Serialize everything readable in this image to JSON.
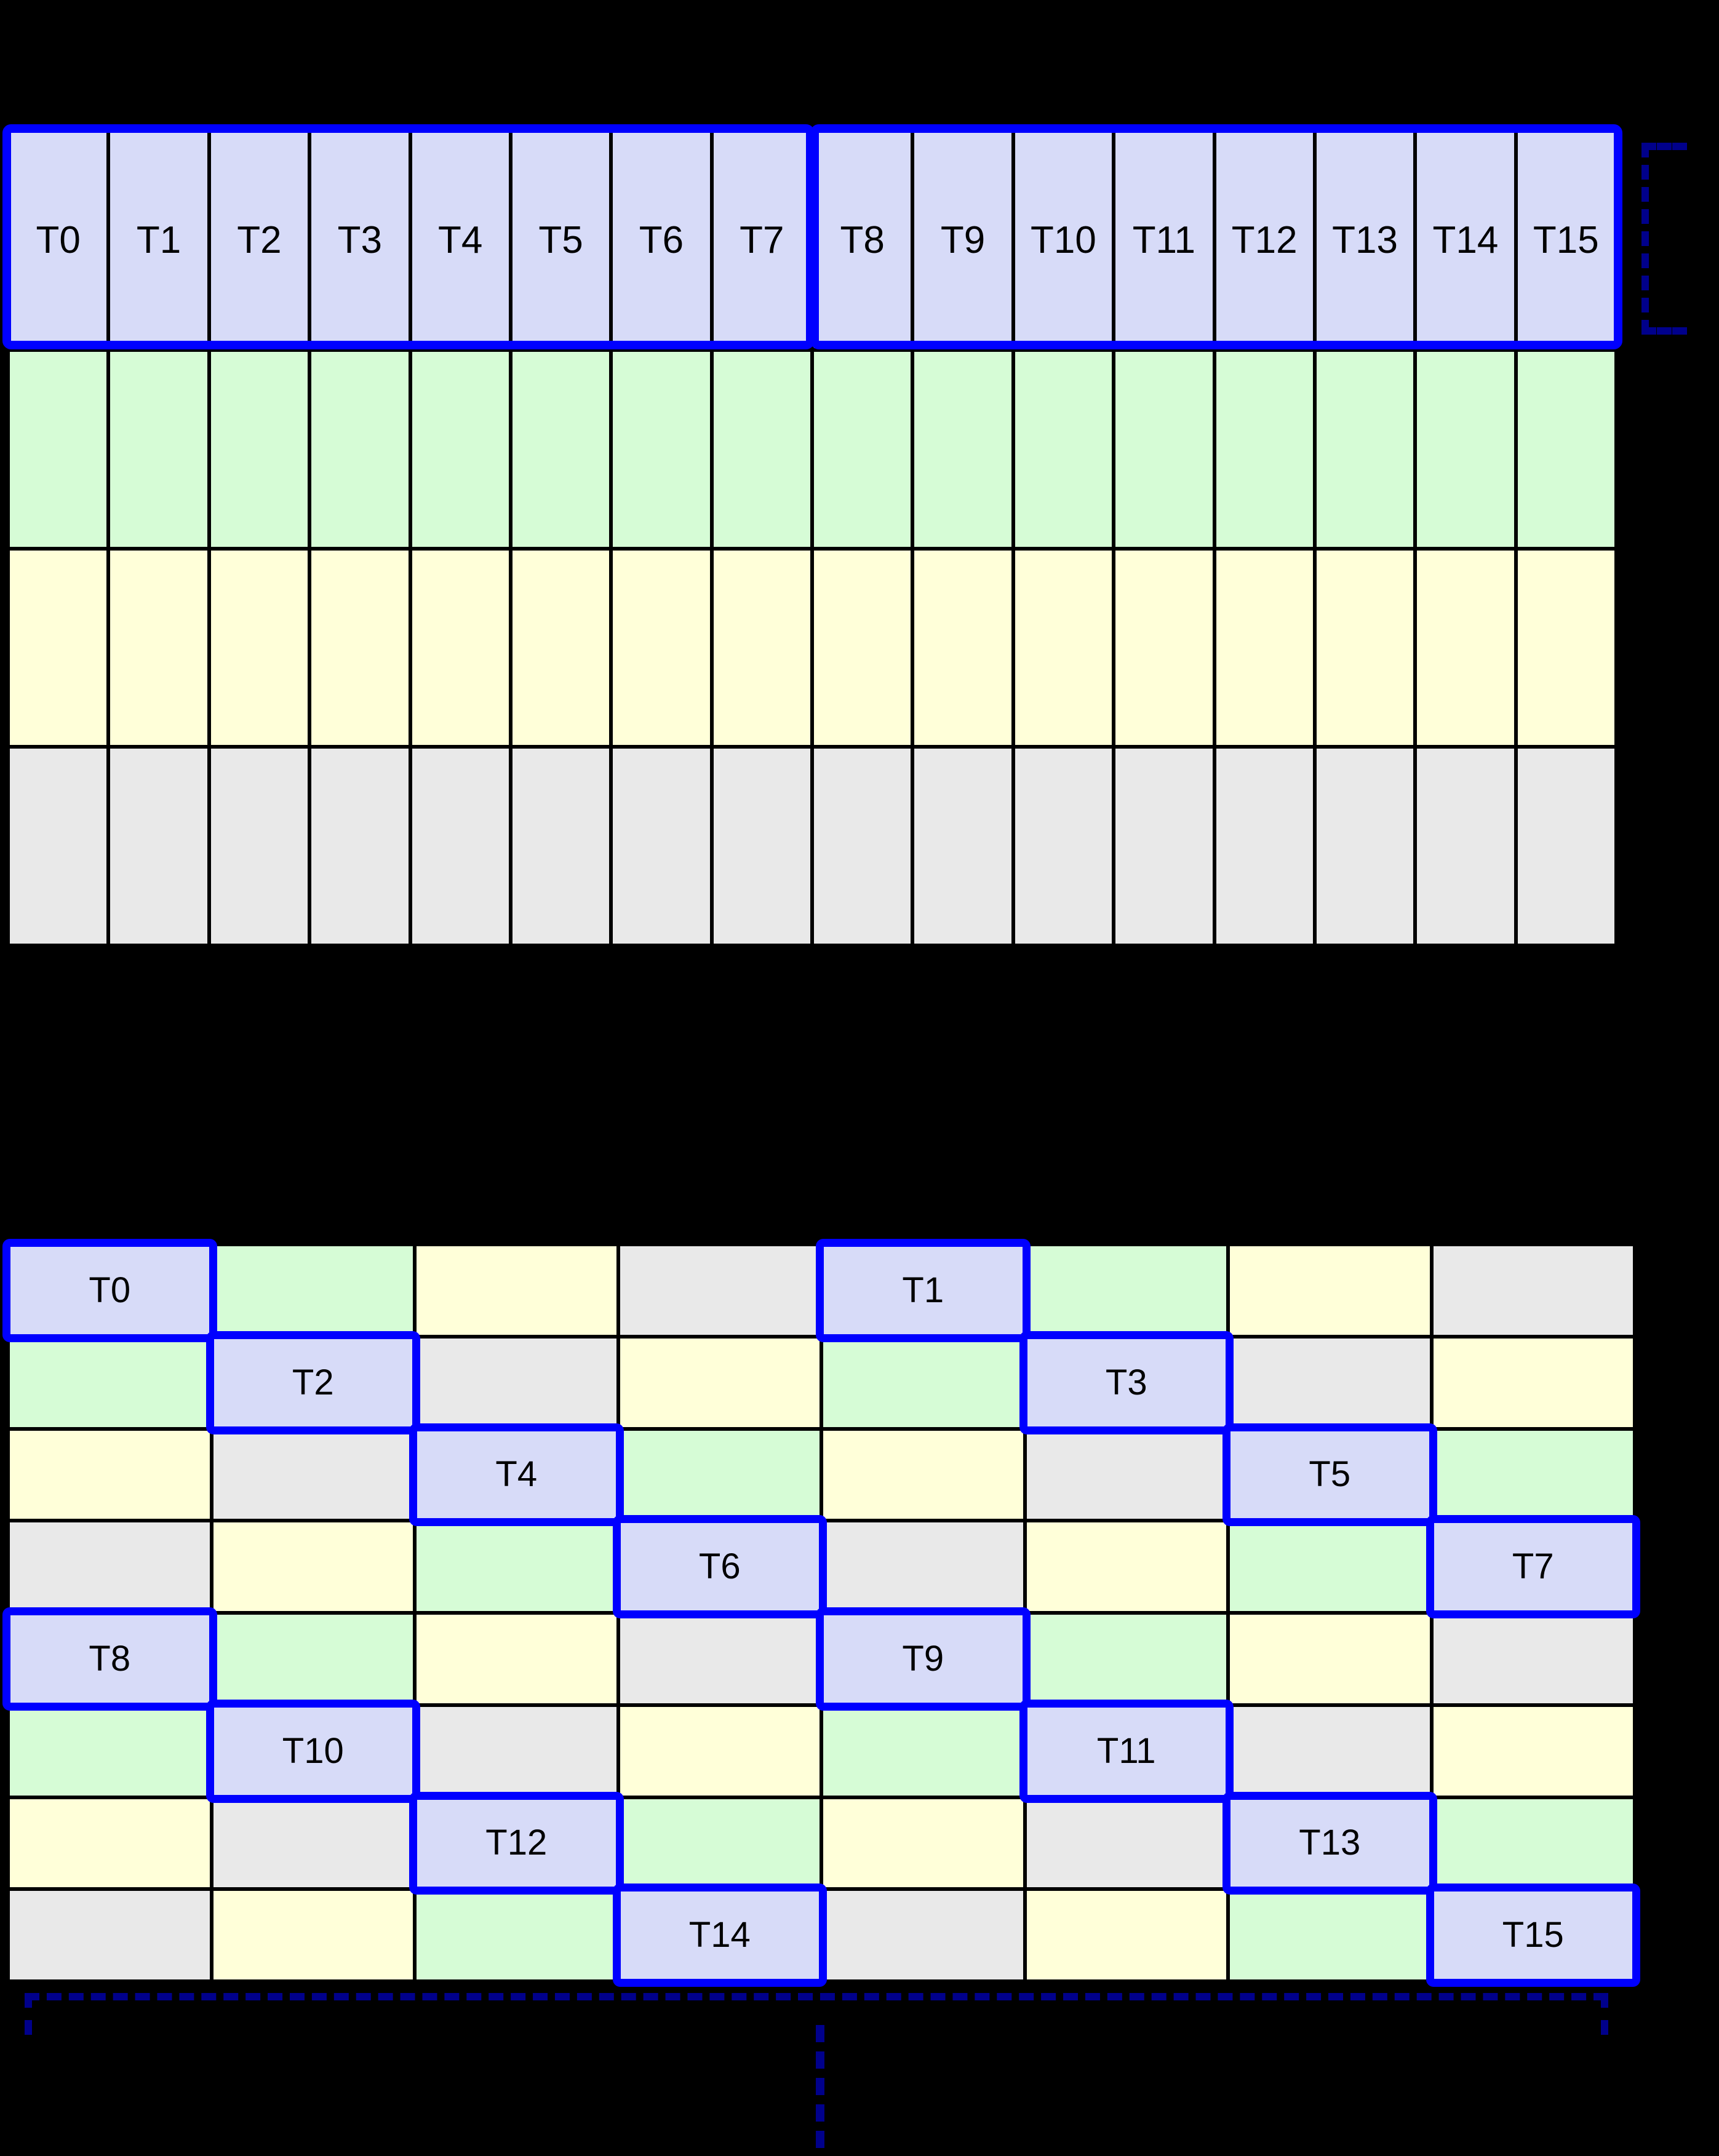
{
  "palette": {
    "lavender": "#D7DBF8",
    "green": "#D6FCD6",
    "yellow": "#FFFFD9",
    "gray": "#E9E9E9",
    "highlight_blue": "#0000FF",
    "bracket_navy": "#00008B",
    "grid_line": "#000000",
    "background": "#000000",
    "label_text": "#000000"
  },
  "top_grid": {
    "columns": 16,
    "header_row_color": "lavender",
    "thread_labels": [
      "T0",
      "T1",
      "T2",
      "T3",
      "T4",
      "T5",
      "T6",
      "T7",
      "T8",
      "T9",
      "T10",
      "T11",
      "T12",
      "T13",
      "T14",
      "T15"
    ],
    "group_size": 8,
    "data_row_colors": [
      "green",
      "yellow",
      "gray"
    ]
  },
  "bottom_grid": {
    "rows": 8,
    "columns": 8,
    "cell_colors": [
      [
        "lavender",
        "green",
        "yellow",
        "gray",
        "lavender",
        "green",
        "yellow",
        "gray"
      ],
      [
        "green",
        "lavender",
        "gray",
        "yellow",
        "green",
        "lavender",
        "gray",
        "yellow"
      ],
      [
        "yellow",
        "gray",
        "lavender",
        "green",
        "yellow",
        "gray",
        "lavender",
        "green"
      ],
      [
        "gray",
        "yellow",
        "green",
        "lavender",
        "gray",
        "yellow",
        "green",
        "lavender"
      ],
      [
        "lavender",
        "green",
        "yellow",
        "gray",
        "lavender",
        "green",
        "yellow",
        "gray"
      ],
      [
        "green",
        "lavender",
        "gray",
        "yellow",
        "green",
        "lavender",
        "gray",
        "yellow"
      ],
      [
        "yellow",
        "gray",
        "lavender",
        "green",
        "yellow",
        "gray",
        "lavender",
        "green"
      ],
      [
        "gray",
        "yellow",
        "green",
        "lavender",
        "gray",
        "yellow",
        "green",
        "lavender"
      ]
    ],
    "highlights": [
      {
        "row": 0,
        "col": 0,
        "label": "T0"
      },
      {
        "row": 0,
        "col": 4,
        "label": "T1"
      },
      {
        "row": 1,
        "col": 1,
        "label": "T2"
      },
      {
        "row": 1,
        "col": 5,
        "label": "T3"
      },
      {
        "row": 2,
        "col": 2,
        "label": "T4"
      },
      {
        "row": 2,
        "col": 6,
        "label": "T5"
      },
      {
        "row": 3,
        "col": 3,
        "label": "T6"
      },
      {
        "row": 3,
        "col": 7,
        "label": "T7"
      },
      {
        "row": 4,
        "col": 0,
        "label": "T8"
      },
      {
        "row": 4,
        "col": 4,
        "label": "T9"
      },
      {
        "row": 5,
        "col": 1,
        "label": "T10"
      },
      {
        "row": 5,
        "col": 5,
        "label": "T11"
      },
      {
        "row": 6,
        "col": 2,
        "label": "T12"
      },
      {
        "row": 6,
        "col": 6,
        "label": "T13"
      },
      {
        "row": 7,
        "col": 3,
        "label": "T14"
      },
      {
        "row": 7,
        "col": 7,
        "label": "T15"
      }
    ]
  }
}
